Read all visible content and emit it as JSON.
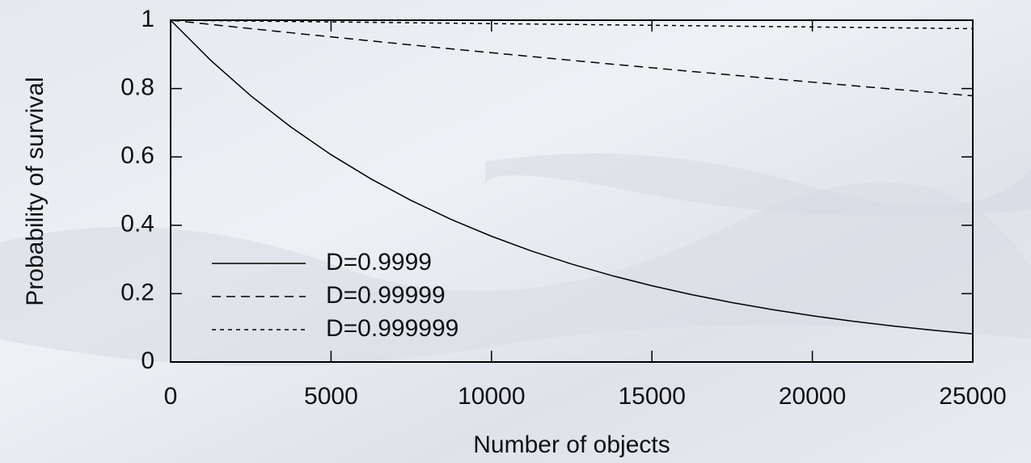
{
  "chart_data": {
    "type": "line",
    "x_label": "Number of objects",
    "y_label": "Probability of survival",
    "x": [
      0,
      1250,
      2500,
      3750,
      5000,
      6250,
      7500,
      8750,
      10000,
      11250,
      12500,
      13750,
      15000,
      16250,
      17500,
      18750,
      20000,
      21250,
      22500,
      23750,
      25000
    ],
    "series": [
      {
        "name": "D=0.9999",
        "color": "#000000",
        "dash": "none",
        "values": [
          1,
          0.8825,
          0.7788,
          0.6873,
          0.6065,
          0.5353,
          0.4724,
          0.4169,
          0.3679,
          0.3247,
          0.2865,
          0.2528,
          0.2231,
          0.1969,
          0.1738,
          0.1534,
          0.1353,
          0.1194,
          0.1054,
          0.093,
          0.0821
        ]
      },
      {
        "name": "D=0.99999",
        "color": "#000000",
        "dash": "11,7",
        "values": [
          1,
          0.9876,
          0.9753,
          0.9632,
          0.9512,
          0.9394,
          0.9277,
          0.9162,
          0.9048,
          0.8936,
          0.8825,
          0.8715,
          0.8607,
          0.85,
          0.8395,
          0.829,
          0.8187,
          0.8085,
          0.7985,
          0.7886,
          0.7788
        ]
      },
      {
        "name": "D=0.999999",
        "color": "#000000",
        "dash": "5,5",
        "values": [
          1,
          0.9988,
          0.9975,
          0.9963,
          0.995,
          0.9938,
          0.9925,
          0.9913,
          0.99,
          0.9888,
          0.9876,
          0.9863,
          0.9851,
          0.9839,
          0.9826,
          0.9814,
          0.9802,
          0.979,
          0.9778,
          0.9765,
          0.9753
        ]
      }
    ],
    "xlim": [
      0,
      25000
    ],
    "xticks": [
      0,
      5000,
      10000,
      15000,
      20000,
      25000
    ],
    "ylim": [
      0,
      1
    ],
    "yticks": [
      0,
      0.2,
      0.4,
      0.6,
      0.8,
      1
    ],
    "legend": "lower-left"
  }
}
